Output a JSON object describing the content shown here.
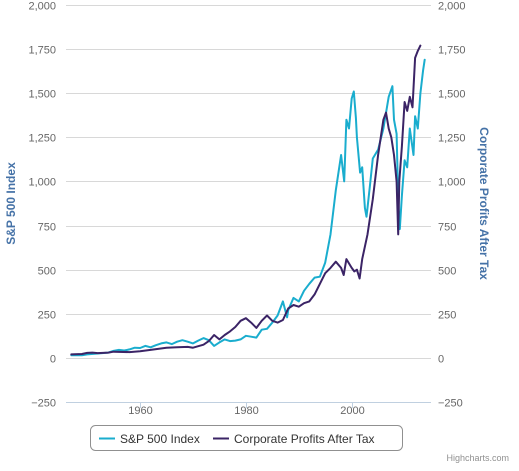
{
  "chart_data": {
    "type": "line",
    "y_axis_left": {
      "title": "S&P 500 Index",
      "min": -250,
      "max": 2000,
      "ticks": [
        -250,
        0,
        250,
        500,
        750,
        1000,
        1250,
        1500,
        1750,
        2000
      ],
      "tick_labels": [
        "−250",
        "0",
        "250",
        "500",
        "750",
        "1,000",
        "1,250",
        "1,500",
        "1,750",
        "2,000"
      ]
    },
    "y_axis_right": {
      "title": "Corporate Profits After Tax",
      "min": -250,
      "max": 2000,
      "ticks": [
        -250,
        0,
        250,
        500,
        750,
        1000,
        1250,
        1500,
        1750,
        2000
      ],
      "tick_labels": [
        "−250",
        "0",
        "250",
        "500",
        "750",
        "1,000",
        "1,250",
        "1,500",
        "1,750",
        "2,000"
      ]
    },
    "x_axis": {
      "min": 1946,
      "max": 2015,
      "ticks": [
        1960,
        1980,
        2000
      ],
      "tick_labels": [
        "1960",
        "1980",
        "2000"
      ]
    },
    "grid": true,
    "legend_position": "bottom-center",
    "series": [
      {
        "name": "S&P 500 Index",
        "color": "#1aadce",
        "axis": "left",
        "points": [
          [
            1947,
            15
          ],
          [
            1949,
            15
          ],
          [
            1950,
            20
          ],
          [
            1952,
            25
          ],
          [
            1954,
            30
          ],
          [
            1955,
            40
          ],
          [
            1956,
            45
          ],
          [
            1957,
            42
          ],
          [
            1958,
            48
          ],
          [
            1959,
            58
          ],
          [
            1960,
            56
          ],
          [
            1961,
            68
          ],
          [
            1962,
            60
          ],
          [
            1963,
            72
          ],
          [
            1964,
            82
          ],
          [
            1965,
            88
          ],
          [
            1966,
            78
          ],
          [
            1967,
            92
          ],
          [
            1968,
            100
          ],
          [
            1969,
            92
          ],
          [
            1970,
            82
          ],
          [
            1971,
            98
          ],
          [
            1972,
            112
          ],
          [
            1973,
            100
          ],
          [
            1974,
            68
          ],
          [
            1975,
            88
          ],
          [
            1976,
            105
          ],
          [
            1977,
            95
          ],
          [
            1978,
            98
          ],
          [
            1979,
            105
          ],
          [
            1980,
            125
          ],
          [
            1981,
            120
          ],
          [
            1982,
            115
          ],
          [
            1983,
            160
          ],
          [
            1984,
            165
          ],
          [
            1985,
            200
          ],
          [
            1986,
            240
          ],
          [
            1987,
            320
          ],
          [
            1987.8,
            230
          ],
          [
            1988,
            270
          ],
          [
            1989,
            340
          ],
          [
            1990,
            320
          ],
          [
            1991,
            380
          ],
          [
            1992,
            420
          ],
          [
            1993,
            455
          ],
          [
            1994,
            460
          ],
          [
            1995,
            540
          ],
          [
            1996,
            700
          ],
          [
            1997,
            950
          ],
          [
            1998,
            1150
          ],
          [
            1998.6,
            1000
          ],
          [
            1999,
            1350
          ],
          [
            1999.5,
            1300
          ],
          [
            2000,
            1470
          ],
          [
            2000.4,
            1510
          ],
          [
            2000.8,
            1360
          ],
          [
            2001,
            1250
          ],
          [
            2001.6,
            1050
          ],
          [
            2002,
            1080
          ],
          [
            2002.5,
            850
          ],
          [
            2002.8,
            800
          ],
          [
            2003,
            850
          ],
          [
            2003.5,
            990
          ],
          [
            2004,
            1130
          ],
          [
            2005,
            1180
          ],
          [
            2006,
            1300
          ],
          [
            2007,
            1480
          ],
          [
            2007.7,
            1540
          ],
          [
            2008,
            1350
          ],
          [
            2008.5,
            1270
          ],
          [
            2008.8,
            900
          ],
          [
            2009.1,
            730
          ],
          [
            2009.5,
            920
          ],
          [
            2010,
            1120
          ],
          [
            2010.5,
            1080
          ],
          [
            2011,
            1300
          ],
          [
            2011.7,
            1150
          ],
          [
            2012,
            1370
          ],
          [
            2012.5,
            1300
          ],
          [
            2013,
            1500
          ],
          [
            2013.5,
            1630
          ],
          [
            2013.8,
            1690
          ]
        ]
      },
      {
        "name": "Corporate Profits After Tax",
        "color": "#3b2466",
        "axis": "right",
        "points": [
          [
            1947,
            20
          ],
          [
            1949,
            22
          ],
          [
            1950,
            28
          ],
          [
            1951,
            30
          ],
          [
            1952,
            27
          ],
          [
            1954,
            30
          ],
          [
            1955,
            35
          ],
          [
            1958,
            33
          ],
          [
            1960,
            38
          ],
          [
            1962,
            45
          ],
          [
            1965,
            58
          ],
          [
            1967,
            60
          ],
          [
            1969,
            62
          ],
          [
            1970,
            58
          ],
          [
            1972,
            75
          ],
          [
            1973,
            95
          ],
          [
            1974,
            130
          ],
          [
            1975,
            105
          ],
          [
            1976,
            130
          ],
          [
            1977,
            150
          ],
          [
            1978,
            175
          ],
          [
            1979,
            210
          ],
          [
            1980,
            225
          ],
          [
            1981,
            200
          ],
          [
            1982,
            170
          ],
          [
            1983,
            210
          ],
          [
            1984,
            240
          ],
          [
            1985,
            210
          ],
          [
            1986,
            200
          ],
          [
            1987,
            215
          ],
          [
            1988,
            280
          ],
          [
            1989,
            300
          ],
          [
            1990,
            290
          ],
          [
            1991,
            310
          ],
          [
            1992,
            320
          ],
          [
            1993,
            360
          ],
          [
            1994,
            420
          ],
          [
            1995,
            480
          ],
          [
            1996,
            510
          ],
          [
            1997,
            545
          ],
          [
            1998,
            510
          ],
          [
            1998.5,
            470
          ],
          [
            1999,
            560
          ],
          [
            2000,
            510
          ],
          [
            2000.5,
            490
          ],
          [
            2001,
            500
          ],
          [
            2001.5,
            450
          ],
          [
            2002,
            560
          ],
          [
            2003,
            700
          ],
          [
            2004,
            900
          ],
          [
            2005,
            1150
          ],
          [
            2006,
            1350
          ],
          [
            2006.5,
            1390
          ],
          [
            2007,
            1300
          ],
          [
            2007.5,
            1250
          ],
          [
            2008,
            1150
          ],
          [
            2008.5,
            1000
          ],
          [
            2008.8,
            700
          ],
          [
            2009,
            1000
          ],
          [
            2009.5,
            1200
          ],
          [
            2010,
            1450
          ],
          [
            2010.5,
            1400
          ],
          [
            2011,
            1480
          ],
          [
            2011.5,
            1420
          ],
          [
            2012,
            1700
          ],
          [
            2012.5,
            1740
          ],
          [
            2013,
            1770
          ]
        ]
      }
    ]
  },
  "legend": {
    "items": [
      {
        "label": "S&P 500 Index",
        "color": "#1aadce"
      },
      {
        "label": "Corporate Profits After Tax",
        "color": "#3b2466"
      }
    ]
  },
  "credits": "Highcharts.com",
  "colors": {
    "grid": "#d8d8d8",
    "axis_title": "#4572A7",
    "tick_label": "#666666"
  }
}
